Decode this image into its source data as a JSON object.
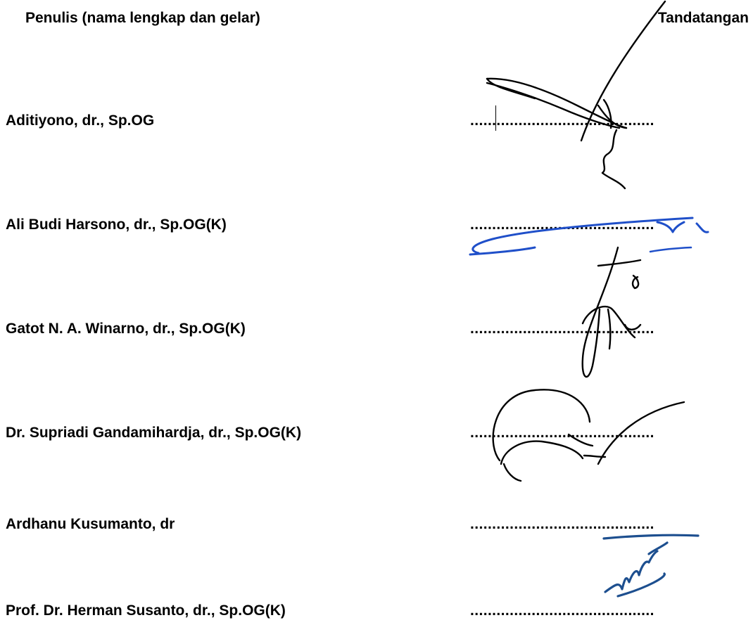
{
  "header": {
    "author_column": "Penulis (nama lengkap dan gelar)",
    "signature_column": "Tandatangan"
  },
  "signature_line": "..........................................",
  "authors": [
    {
      "name": "Aditiyono, dr., Sp.OG",
      "signature_color": "#000000"
    },
    {
      "name": "Ali Budi Harsono, dr., Sp.OG(K)",
      "signature_color": "#1f4fc9"
    },
    {
      "name": "Gatot N. A. Winarno, dr., Sp.OG(K)",
      "signature_color": "#000000"
    },
    {
      "name": "Dr. Supriadi Gandamihardja, dr., Sp.OG(K)",
      "signature_color": "#000000"
    },
    {
      "name": "Ardhanu Kusumanto, dr",
      "signature_color": "#000000"
    },
    {
      "name": "Prof. Dr. Herman Susanto, dr., Sp.OG(K)",
      "signature_color": "#1d4f8f"
    }
  ]
}
